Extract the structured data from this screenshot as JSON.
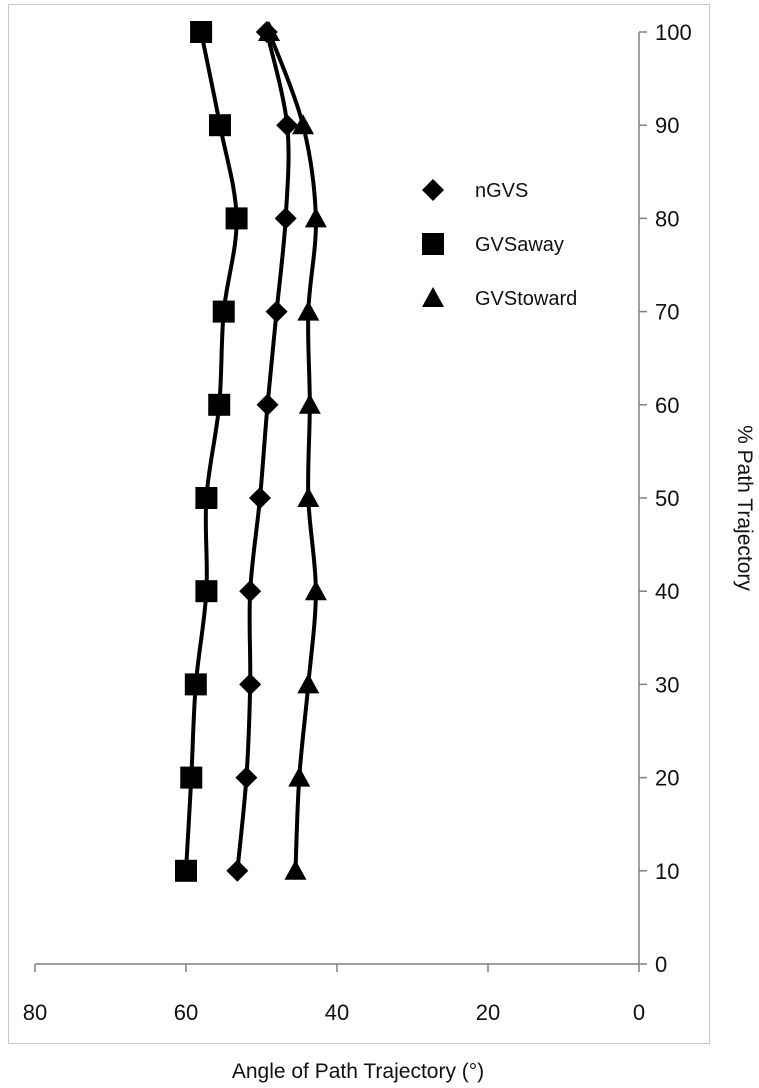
{
  "chart_data": {
    "type": "line",
    "title": "",
    "xlabel": "Angle of Path Trajectory (°)",
    "ylabel": "% Path Trajectory",
    "xlim": [
      80,
      0
    ],
    "ylim": [
      0,
      100
    ],
    "x_ticks": [
      80,
      60,
      40,
      20,
      0
    ],
    "y_ticks": [
      0,
      10,
      20,
      30,
      40,
      50,
      60,
      70,
      80,
      90,
      100
    ],
    "y_axis_side": "right",
    "grid": false,
    "legend_position": "upper-middle-right",
    "series": [
      {
        "name": "nGVS",
        "marker": "diamond",
        "color": "#000000",
        "y": [
          10,
          20,
          30,
          40,
          50,
          60,
          70,
          80,
          90,
          100
        ],
        "x": [
          53.2,
          52.0,
          51.5,
          51.5,
          50.2,
          49.2,
          48.0,
          46.8,
          46.6,
          49.3
        ]
      },
      {
        "name": "GVSaway",
        "marker": "square",
        "color": "#000000",
        "y": [
          10,
          20,
          30,
          40,
          50,
          60,
          70,
          80,
          90,
          100
        ],
        "x": [
          60.0,
          59.3,
          58.7,
          57.3,
          57.3,
          55.6,
          55.0,
          53.3,
          55.5,
          58.0
        ]
      },
      {
        "name": "GVStoward",
        "marker": "triangle",
        "color": "#000000",
        "y": [
          10,
          20,
          30,
          40,
          50,
          60,
          70,
          80,
          90,
          100
        ],
        "x": [
          45.5,
          45.0,
          43.8,
          42.8,
          43.8,
          43.6,
          43.8,
          42.8,
          44.5,
          49.0
        ]
      }
    ]
  }
}
